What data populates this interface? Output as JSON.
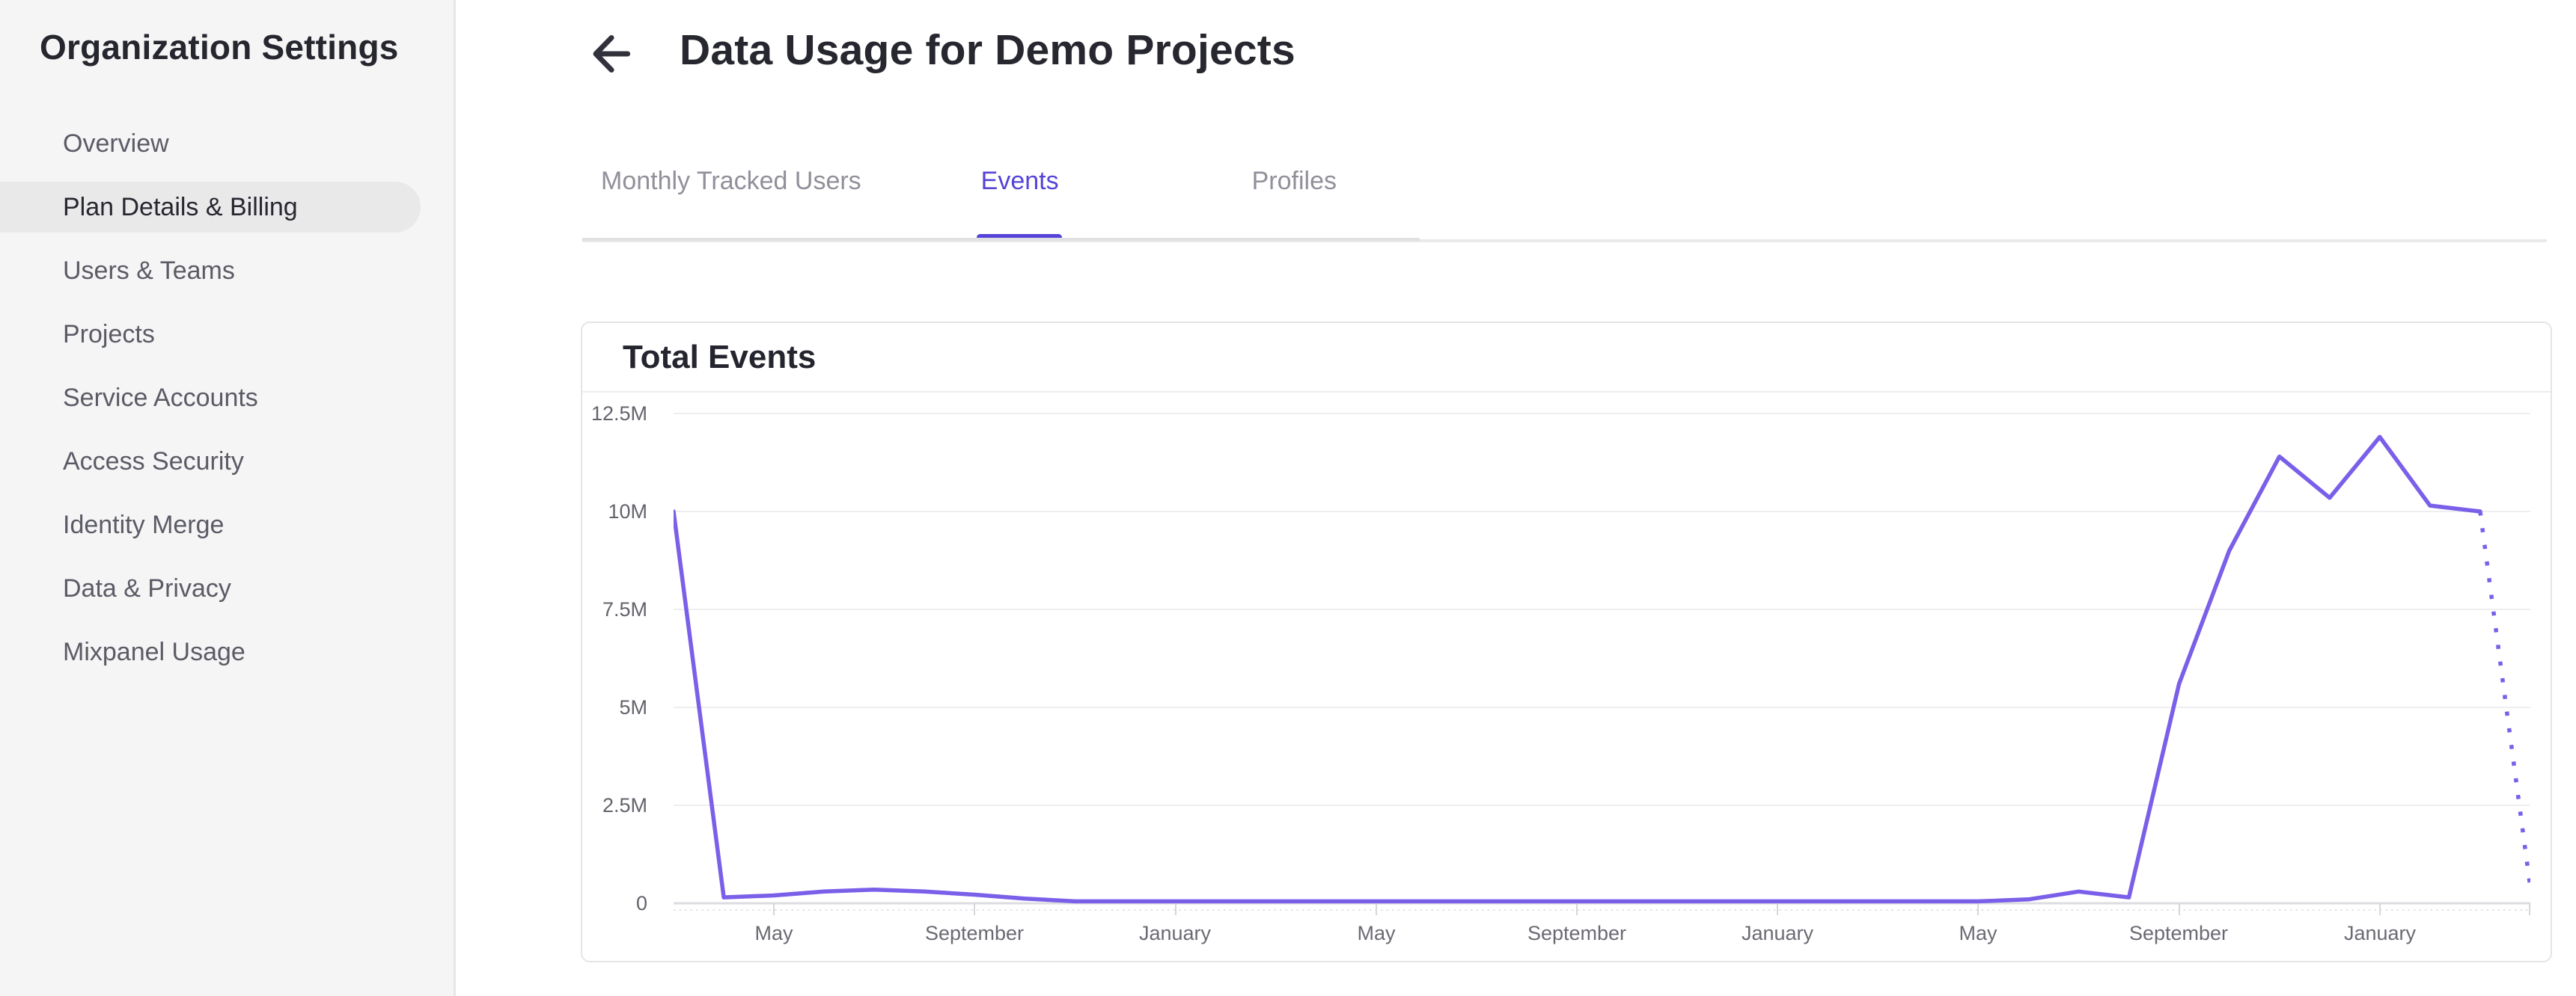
{
  "sidebar": {
    "title": "Organization Settings",
    "items": [
      {
        "label": "Overview",
        "active": false
      },
      {
        "label": "Plan Details & Billing",
        "active": true
      },
      {
        "label": "Users & Teams",
        "active": false
      },
      {
        "label": "Projects",
        "active": false
      },
      {
        "label": "Service Accounts",
        "active": false
      },
      {
        "label": "Access Security",
        "active": false
      },
      {
        "label": "Identity Merge",
        "active": false
      },
      {
        "label": "Data & Privacy",
        "active": false
      },
      {
        "label": "Mixpanel Usage",
        "active": false
      }
    ]
  },
  "header": {
    "back_icon": "arrow-left",
    "title": "Data Usage for Demo Projects"
  },
  "tabs": [
    {
      "label": "Monthly Tracked Users",
      "active": false
    },
    {
      "label": "Events",
      "active": true
    },
    {
      "label": "Profiles",
      "active": false
    }
  ],
  "card": {
    "title": "Total Events"
  },
  "chart_data": {
    "type": "line",
    "title": "Total Events",
    "legend": "none",
    "grid": "horizontal",
    "line_color": "#7a5fe9",
    "ylim_millions": [
      0,
      12.5
    ],
    "ytick_values_millions": [
      0,
      2.5,
      5,
      7.5,
      10,
      12.5
    ],
    "ytick_labels": [
      "0",
      "2.5M",
      "5M",
      "7.5M",
      "10M",
      "12.5M"
    ],
    "x_tick_labels": [
      "May",
      "September",
      "January",
      "May",
      "September",
      "January",
      "May",
      "September",
      "January"
    ],
    "x_tick_month_indices": [
      2,
      6,
      10,
      14,
      18,
      22,
      26,
      30,
      34
    ],
    "x_points_are_monthly": true,
    "series": [
      {
        "name": "Total Events",
        "unit": "millions of events",
        "values_millions": [
          10,
          0.15,
          0.2,
          0.3,
          0.35,
          0.3,
          0.22,
          0.12,
          0.05,
          0.05,
          0.05,
          0.05,
          0.05,
          0.05,
          0.05,
          0.05,
          0.05,
          0.05,
          0.05,
          0.05,
          0.05,
          0.05,
          0.05,
          0.05,
          0.05,
          0.05,
          0.05,
          0.1,
          0.3,
          0.15,
          5.6,
          9.0,
          11.4,
          10.35,
          11.9,
          10.15,
          10.0,
          0.4
        ],
        "solid_until_index": 36,
        "last_segment_projected_dotted": true
      }
    ]
  },
  "colors": {
    "accent_tab": "#5544d7",
    "chart_line": "#7a5fe9",
    "sidebar_bg": "#f5f5f6",
    "active_item_bg": "#e9e9ea",
    "card_border": "#e5e5e8",
    "gridline": "#eeeef1",
    "axis_line": "#dddde1"
  }
}
